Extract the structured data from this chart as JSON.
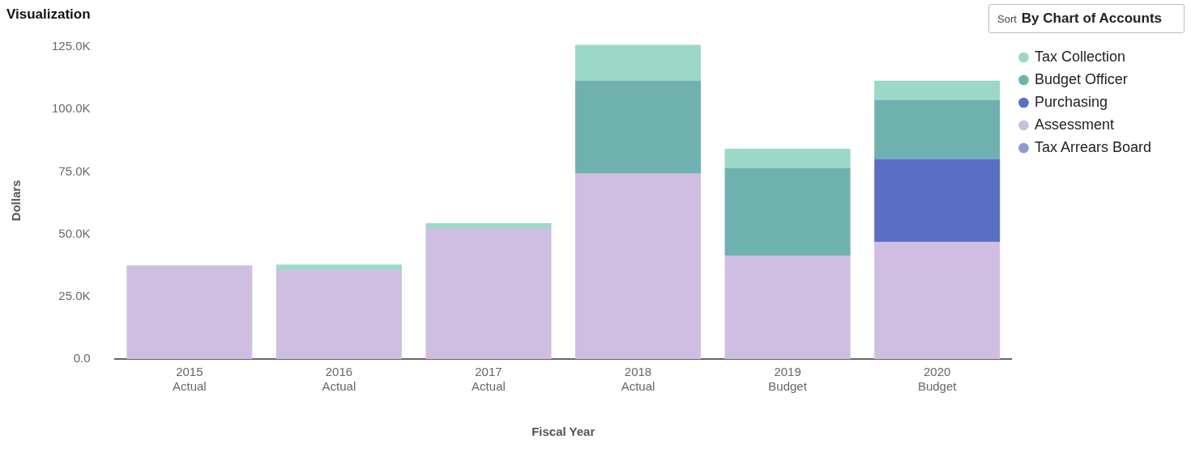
{
  "chart_data": {
    "type": "bar",
    "title": "Visualization",
    "xlabel": "Fiscal Year",
    "ylabel": "Dollars",
    "categories": [
      "2015 Actual",
      "2016 Actual",
      "2017 Actual",
      "2018 Actual",
      "2019 Budget",
      "2020 Budget"
    ],
    "stacked": true,
    "legend": "top right",
    "ylim": [
      0,
      127000
    ],
    "yticks": [
      {
        "value": 0,
        "label": "0.0"
      },
      {
        "value": 25000,
        "label": "25.0K"
      },
      {
        "value": 50000,
        "label": "50.0K"
      },
      {
        "value": 75000,
        "label": "75.0K"
      },
      {
        "value": 100000,
        "label": "100.0K"
      },
      {
        "value": 125000,
        "label": "125.0K"
      }
    ],
    "annotations": [
      "Sort",
      "By Chart of Accounts"
    ],
    "series": [
      {
        "name": "Tax Arrears Board",
        "color": "#8d99cf",
        "values": [
          null,
          null,
          null,
          null,
          null,
          null
        ]
      },
      {
        "name": "Assessment",
        "color": "#d0bde2",
        "values": [
          37500,
          35600,
          52500,
          74300,
          41500,
          47000
        ]
      },
      {
        "name": "Purchasing",
        "color": "#5a6fc4",
        "values": [
          null,
          null,
          null,
          null,
          null,
          33200
        ]
      },
      {
        "name": "Budget Officer",
        "color": "#6fb1ae",
        "values": [
          null,
          null,
          null,
          37200,
          35000,
          23600
        ]
      },
      {
        "name": "Tax Collection",
        "color": "#9bd8c8",
        "values": [
          null,
          2200,
          1900,
          14400,
          7700,
          7700
        ]
      }
    ]
  }
}
